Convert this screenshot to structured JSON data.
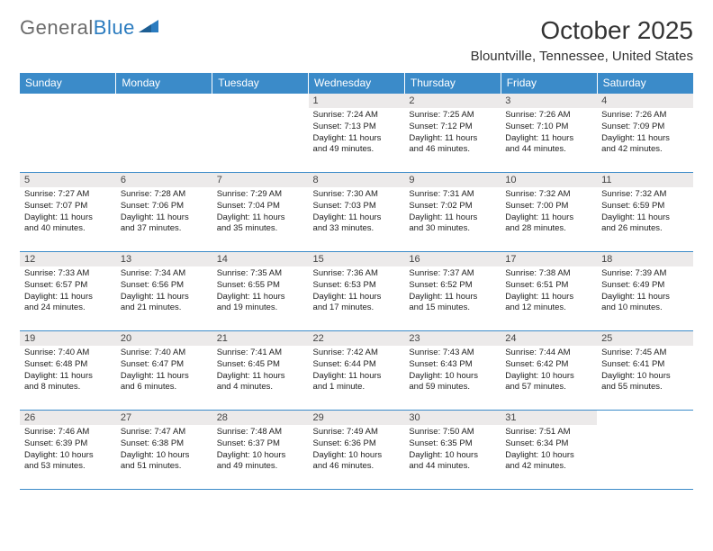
{
  "brand": {
    "name_gray": "General",
    "name_blue": "Blue"
  },
  "title": "October 2025",
  "location": "Blountville, Tennessee, United States",
  "colors": {
    "header_bg": "#3b8bc9",
    "header_text": "#ffffff",
    "daynum_bg": "#eceaea",
    "border": "#3b8bc9",
    "logo_gray": "#6b6b6b",
    "logo_blue": "#2a7bbf"
  },
  "weekdays": [
    "Sunday",
    "Monday",
    "Tuesday",
    "Wednesday",
    "Thursday",
    "Friday",
    "Saturday"
  ],
  "weeks": [
    [
      null,
      null,
      null,
      {
        "n": "1",
        "sr": "Sunrise: 7:24 AM",
        "ss": "Sunset: 7:13 PM",
        "d1": "Daylight: 11 hours",
        "d2": "and 49 minutes."
      },
      {
        "n": "2",
        "sr": "Sunrise: 7:25 AM",
        "ss": "Sunset: 7:12 PM",
        "d1": "Daylight: 11 hours",
        "d2": "and 46 minutes."
      },
      {
        "n": "3",
        "sr": "Sunrise: 7:26 AM",
        "ss": "Sunset: 7:10 PM",
        "d1": "Daylight: 11 hours",
        "d2": "and 44 minutes."
      },
      {
        "n": "4",
        "sr": "Sunrise: 7:26 AM",
        "ss": "Sunset: 7:09 PM",
        "d1": "Daylight: 11 hours",
        "d2": "and 42 minutes."
      }
    ],
    [
      {
        "n": "5",
        "sr": "Sunrise: 7:27 AM",
        "ss": "Sunset: 7:07 PM",
        "d1": "Daylight: 11 hours",
        "d2": "and 40 minutes."
      },
      {
        "n": "6",
        "sr": "Sunrise: 7:28 AM",
        "ss": "Sunset: 7:06 PM",
        "d1": "Daylight: 11 hours",
        "d2": "and 37 minutes."
      },
      {
        "n": "7",
        "sr": "Sunrise: 7:29 AM",
        "ss": "Sunset: 7:04 PM",
        "d1": "Daylight: 11 hours",
        "d2": "and 35 minutes."
      },
      {
        "n": "8",
        "sr": "Sunrise: 7:30 AM",
        "ss": "Sunset: 7:03 PM",
        "d1": "Daylight: 11 hours",
        "d2": "and 33 minutes."
      },
      {
        "n": "9",
        "sr": "Sunrise: 7:31 AM",
        "ss": "Sunset: 7:02 PM",
        "d1": "Daylight: 11 hours",
        "d2": "and 30 minutes."
      },
      {
        "n": "10",
        "sr": "Sunrise: 7:32 AM",
        "ss": "Sunset: 7:00 PM",
        "d1": "Daylight: 11 hours",
        "d2": "and 28 minutes."
      },
      {
        "n": "11",
        "sr": "Sunrise: 7:32 AM",
        "ss": "Sunset: 6:59 PM",
        "d1": "Daylight: 11 hours",
        "d2": "and 26 minutes."
      }
    ],
    [
      {
        "n": "12",
        "sr": "Sunrise: 7:33 AM",
        "ss": "Sunset: 6:57 PM",
        "d1": "Daylight: 11 hours",
        "d2": "and 24 minutes."
      },
      {
        "n": "13",
        "sr": "Sunrise: 7:34 AM",
        "ss": "Sunset: 6:56 PM",
        "d1": "Daylight: 11 hours",
        "d2": "and 21 minutes."
      },
      {
        "n": "14",
        "sr": "Sunrise: 7:35 AM",
        "ss": "Sunset: 6:55 PM",
        "d1": "Daylight: 11 hours",
        "d2": "and 19 minutes."
      },
      {
        "n": "15",
        "sr": "Sunrise: 7:36 AM",
        "ss": "Sunset: 6:53 PM",
        "d1": "Daylight: 11 hours",
        "d2": "and 17 minutes."
      },
      {
        "n": "16",
        "sr": "Sunrise: 7:37 AM",
        "ss": "Sunset: 6:52 PM",
        "d1": "Daylight: 11 hours",
        "d2": "and 15 minutes."
      },
      {
        "n": "17",
        "sr": "Sunrise: 7:38 AM",
        "ss": "Sunset: 6:51 PM",
        "d1": "Daylight: 11 hours",
        "d2": "and 12 minutes."
      },
      {
        "n": "18",
        "sr": "Sunrise: 7:39 AM",
        "ss": "Sunset: 6:49 PM",
        "d1": "Daylight: 11 hours",
        "d2": "and 10 minutes."
      }
    ],
    [
      {
        "n": "19",
        "sr": "Sunrise: 7:40 AM",
        "ss": "Sunset: 6:48 PM",
        "d1": "Daylight: 11 hours",
        "d2": "and 8 minutes."
      },
      {
        "n": "20",
        "sr": "Sunrise: 7:40 AM",
        "ss": "Sunset: 6:47 PM",
        "d1": "Daylight: 11 hours",
        "d2": "and 6 minutes."
      },
      {
        "n": "21",
        "sr": "Sunrise: 7:41 AM",
        "ss": "Sunset: 6:45 PM",
        "d1": "Daylight: 11 hours",
        "d2": "and 4 minutes."
      },
      {
        "n": "22",
        "sr": "Sunrise: 7:42 AM",
        "ss": "Sunset: 6:44 PM",
        "d1": "Daylight: 11 hours",
        "d2": "and 1 minute."
      },
      {
        "n": "23",
        "sr": "Sunrise: 7:43 AM",
        "ss": "Sunset: 6:43 PM",
        "d1": "Daylight: 10 hours",
        "d2": "and 59 minutes."
      },
      {
        "n": "24",
        "sr": "Sunrise: 7:44 AM",
        "ss": "Sunset: 6:42 PM",
        "d1": "Daylight: 10 hours",
        "d2": "and 57 minutes."
      },
      {
        "n": "25",
        "sr": "Sunrise: 7:45 AM",
        "ss": "Sunset: 6:41 PM",
        "d1": "Daylight: 10 hours",
        "d2": "and 55 minutes."
      }
    ],
    [
      {
        "n": "26",
        "sr": "Sunrise: 7:46 AM",
        "ss": "Sunset: 6:39 PM",
        "d1": "Daylight: 10 hours",
        "d2": "and 53 minutes."
      },
      {
        "n": "27",
        "sr": "Sunrise: 7:47 AM",
        "ss": "Sunset: 6:38 PM",
        "d1": "Daylight: 10 hours",
        "d2": "and 51 minutes."
      },
      {
        "n": "28",
        "sr": "Sunrise: 7:48 AM",
        "ss": "Sunset: 6:37 PM",
        "d1": "Daylight: 10 hours",
        "d2": "and 49 minutes."
      },
      {
        "n": "29",
        "sr": "Sunrise: 7:49 AM",
        "ss": "Sunset: 6:36 PM",
        "d1": "Daylight: 10 hours",
        "d2": "and 46 minutes."
      },
      {
        "n": "30",
        "sr": "Sunrise: 7:50 AM",
        "ss": "Sunset: 6:35 PM",
        "d1": "Daylight: 10 hours",
        "d2": "and 44 minutes."
      },
      {
        "n": "31",
        "sr": "Sunrise: 7:51 AM",
        "ss": "Sunset: 6:34 PM",
        "d1": "Daylight: 10 hours",
        "d2": "and 42 minutes."
      },
      null
    ]
  ]
}
